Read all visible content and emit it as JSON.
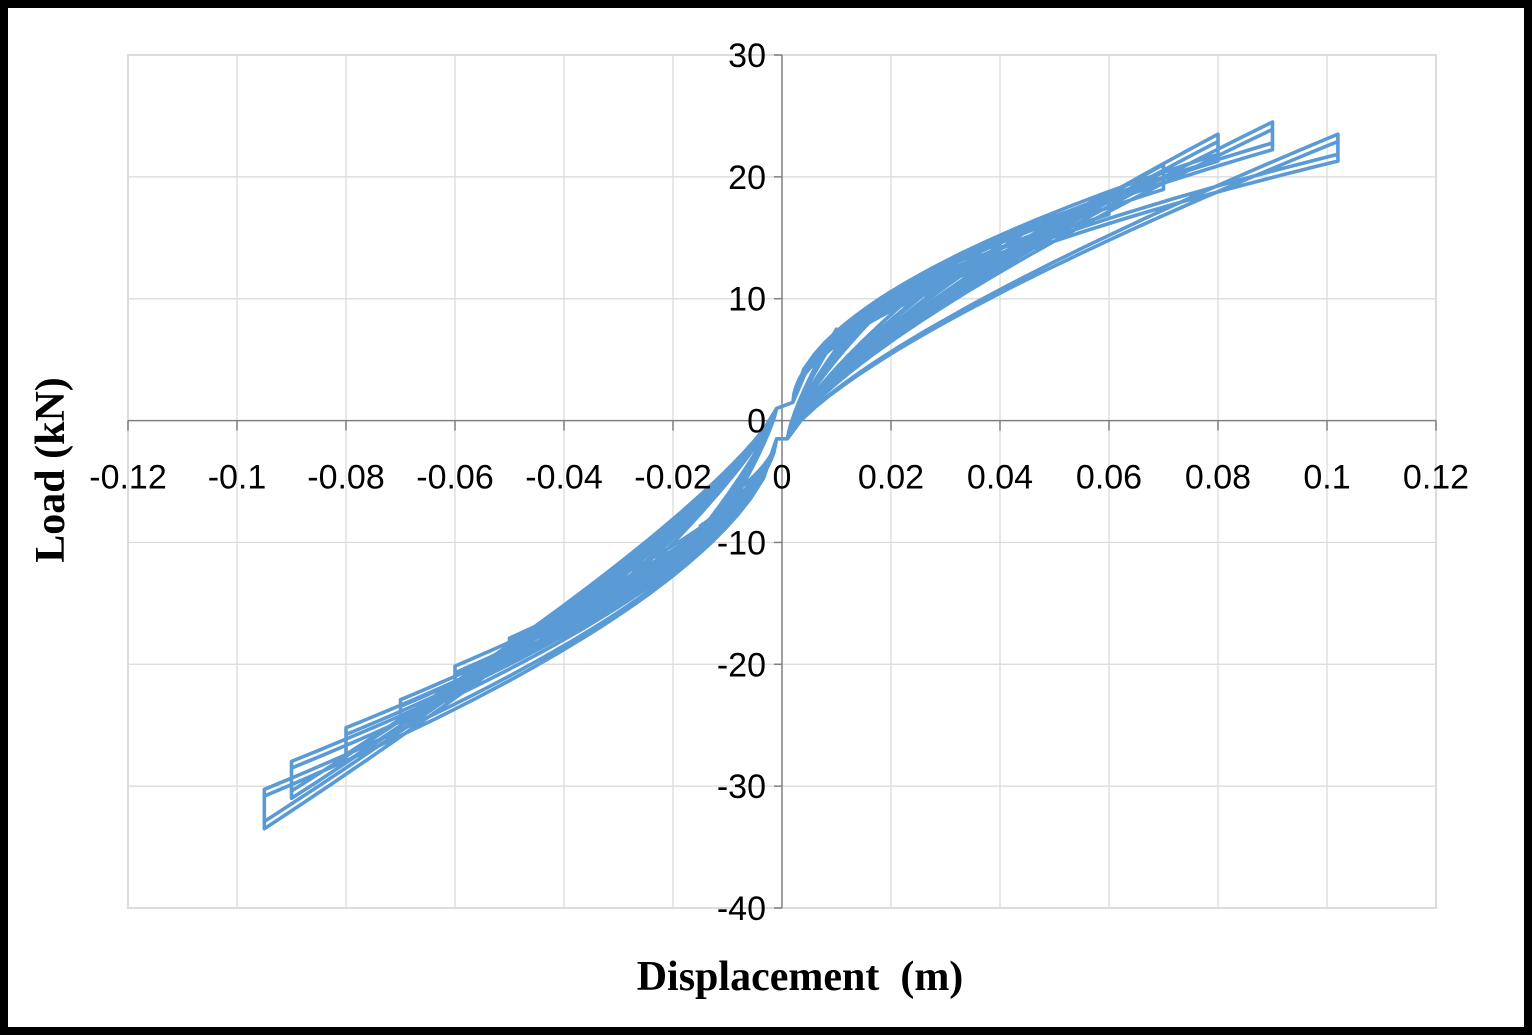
{
  "chart_data": {
    "type": "line",
    "title": "",
    "xlabel": "Displacement  (m)",
    "ylabel": "Load (kN)",
    "xlim": [
      -0.12,
      0.12
    ],
    "ylim": [
      -40,
      30
    ],
    "xticks": [
      -0.12,
      -0.1,
      -0.08,
      -0.06,
      -0.04,
      -0.02,
      0,
      0.02,
      0.04,
      0.06,
      0.08,
      0.1,
      0.12
    ],
    "xtick_labels": [
      "-0.12",
      "-0.1",
      "-0.08",
      "-0.06",
      "-0.04",
      "-0.02",
      "0",
      "0.02",
      "0.04",
      "0.06",
      "0.08",
      "0.1",
      "0.12"
    ],
    "yticks": [
      -40,
      -30,
      -20,
      -10,
      0,
      10,
      20,
      30
    ],
    "ytick_labels": [
      "-40",
      "-30",
      "-20",
      "-10",
      "0",
      "10",
      "20",
      "30"
    ],
    "grid": true,
    "legend": "none",
    "series_color": "#5b9bd5",
    "series": [
      {
        "cycles": [
          {
            "dmax": 0.01,
            "fmax": 7.5,
            "dmin": -0.01,
            "fmin": -7.5
          },
          {
            "dmax": 0.015,
            "fmax": 8.8,
            "dmin": -0.015,
            "fmin": -10.0
          },
          {
            "dmax": 0.02,
            "fmax": 10.5,
            "dmin": -0.02,
            "fmin": -12.5
          },
          {
            "dmax": 0.03,
            "fmax": 12.5,
            "dmin": -0.03,
            "fmin": -14.5
          },
          {
            "dmax": 0.04,
            "fmax": 15.0,
            "dmin": -0.04,
            "fmin": -17.5
          },
          {
            "dmax": 0.05,
            "fmax": 17.0,
            "dmin": -0.05,
            "fmin": -20.0
          },
          {
            "dmax": 0.06,
            "fmax": 18.8,
            "dmin": -0.06,
            "fmin": -22.5
          },
          {
            "dmax": 0.07,
            "fmax": 21.0,
            "dmin": -0.07,
            "fmin": -25.5
          },
          {
            "dmax": 0.08,
            "fmax": 23.5,
            "dmin": -0.08,
            "fmin": -28.0
          },
          {
            "dmax": 0.09,
            "fmax": 24.5,
            "dmin": -0.09,
            "fmin": -31.0
          },
          {
            "dmax": 0.102,
            "fmax": 23.5,
            "dmin": -0.095,
            "fmin": -33.5
          }
        ]
      }
    ]
  }
}
